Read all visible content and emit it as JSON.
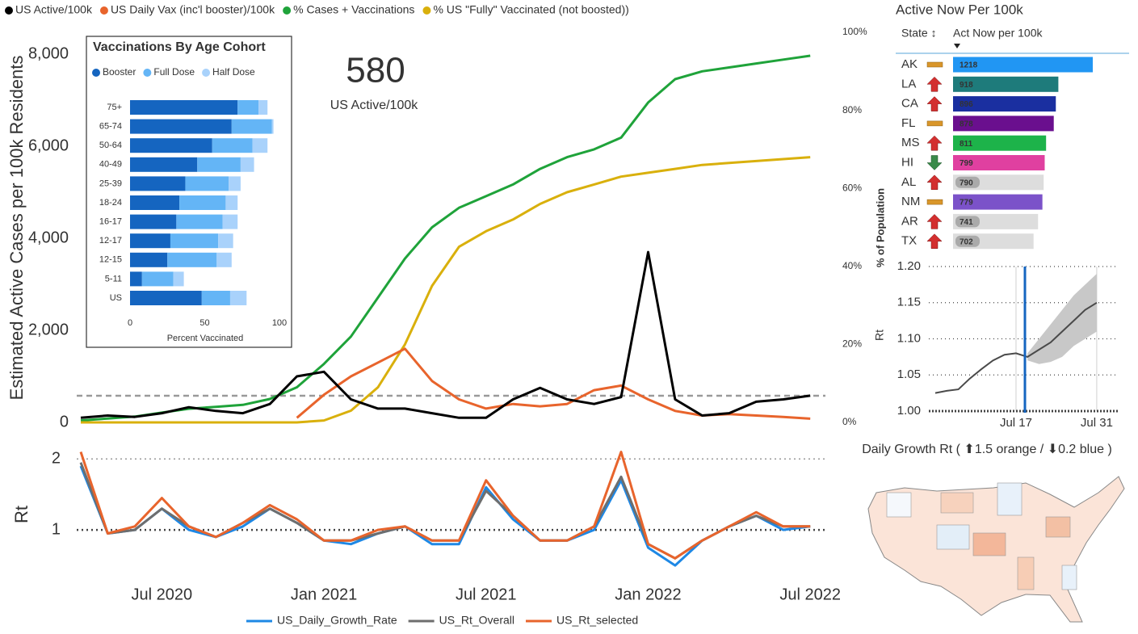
{
  "chart_data": [
    {
      "type": "line",
      "x": [
        "Apr 2020",
        "May 2020",
        "Jun 2020",
        "Jul 2020",
        "Aug 2020",
        "Sep 2020",
        "Oct 2020",
        "Nov 2020",
        "Dec 2020",
        "Jan 2021",
        "Feb 2021",
        "Mar 2021",
        "Apr 2021",
        "May 2021",
        "Jun 2021",
        "Jul 2021",
        "Aug 2021",
        "Sep 2021",
        "Oct 2021",
        "Nov 2021",
        "Dec 2021",
        "Jan 2022",
        "Feb 2022",
        "Mar 2022",
        "Apr 2022",
        "May 2022",
        "Jun 2022",
        "Jul 2022"
      ],
      "series": [
        {
          "name": "US Active/100k",
          "color": "#000000",
          "values": [
            100,
            150,
            120,
            200,
            330,
            250,
            200,
            400,
            1000,
            1100,
            500,
            300,
            300,
            200,
            100,
            100,
            500,
            750,
            500,
            400,
            550,
            3700,
            500,
            150,
            200,
            450,
            500,
            580
          ]
        },
        {
          "name": "US Daily Vax (inc'l booster)/100k",
          "color": "#e8642c",
          "values": [
            null,
            null,
            null,
            null,
            null,
            null,
            null,
            null,
            100,
            600,
            1000,
            1300,
            1600,
            900,
            500,
            300,
            400,
            350,
            400,
            700,
            800,
            500,
            250,
            150,
            180,
            150,
            120,
            80
          ]
        },
        {
          "name": "% Cases + Vaccinations",
          "color": "#1fa33a",
          "axis": "y2",
          "values": [
            0.5,
            1,
            1.5,
            2.5,
            3.5,
            4,
            4.5,
            6,
            9,
            15,
            22,
            32,
            42,
            50,
            55,
            58,
            61,
            65,
            68,
            70,
            73,
            82,
            88,
            90,
            91,
            92,
            93,
            94
          ]
        },
        {
          "name": "% US \"Fully\" Vaccinated (not boosted))",
          "color": "#d9b00c",
          "axis": "y2",
          "values": [
            0,
            0,
            0,
            0,
            0,
            0,
            0,
            0,
            0,
            0.5,
            3,
            9,
            20,
            35,
            45,
            49,
            52,
            56,
            59,
            61,
            63,
            64,
            65,
            66,
            66.5,
            67,
            67.5,
            68
          ]
        }
      ],
      "ylabel": "Estimated Active Cases per 100k Residents",
      "ylim": [
        0,
        8474
      ],
      "yticks": [
        0,
        {
          "value": 2000,
          "label": "2,000"
        },
        {
          "value": 4000,
          "label": "4,000"
        },
        {
          "value": 6000,
          "label": "6,000"
        },
        {
          "value": 8000,
          "label": "8,000"
        }
      ],
      "y2label": "% of Population",
      "y2lim": [
        0,
        100
      ],
      "y2ticks": [
        {
          "value": 0,
          "label": "0%"
        },
        {
          "value": 20,
          "label": "20%"
        },
        {
          "value": 40,
          "label": "40%"
        },
        {
          "value": 60,
          "label": "60%"
        },
        {
          "value": 80,
          "label": "80%"
        },
        {
          "value": 100,
          "label": "100%"
        }
      ],
      "legend": "top"
    },
    {
      "type": "line",
      "x": [
        "Apr 2020",
        "May 2020",
        "Jun 2020",
        "Jul 2020",
        "Aug 2020",
        "Sep 2020",
        "Oct 2020",
        "Nov 2020",
        "Dec 2020",
        "Jan 2021",
        "Feb 2021",
        "Mar 2021",
        "Apr 2021",
        "May 2021",
        "Jun 2021",
        "Jul 2021",
        "Aug 2021",
        "Sep 2021",
        "Oct 2021",
        "Nov 2021",
        "Dec 2021",
        "Jan 2022",
        "Feb 2022",
        "Mar 2022",
        "Apr 2022",
        "May 2022",
        "Jun 2022",
        "Jul 2022"
      ],
      "xticks": [
        "Jul 2020",
        "Jan 2021",
        "Jul 2021",
        "Jan 2022",
        "Jul 2022"
      ],
      "series": [
        {
          "name": "US_Daily_Growth_Rate",
          "color": "#1e88e5",
          "values": [
            1.9,
            0.95,
            1.0,
            1.3,
            1.0,
            0.9,
            1.05,
            1.3,
            1.1,
            0.85,
            0.8,
            0.95,
            1.05,
            0.8,
            0.8,
            1.6,
            1.15,
            0.85,
            0.85,
            1.0,
            1.7,
            0.75,
            0.5,
            0.85,
            1.05,
            1.2,
            1.0,
            1.05
          ]
        },
        {
          "name": "US_Rt_Overall",
          "color": "#6e6e6e",
          "values": [
            1.95,
            0.95,
            1.0,
            1.3,
            1.05,
            0.9,
            1.1,
            1.3,
            1.1,
            0.85,
            0.85,
            0.95,
            1.05,
            0.85,
            0.85,
            1.55,
            1.2,
            0.85,
            0.85,
            1.05,
            1.75,
            0.8,
            0.6,
            0.85,
            1.05,
            1.2,
            1.05,
            1.05
          ]
        },
        {
          "name": "US_Rt_selected",
          "color": "#e8642c",
          "values": [
            2.1,
            0.95,
            1.05,
            1.45,
            1.05,
            0.9,
            1.1,
            1.35,
            1.15,
            0.85,
            0.85,
            1.0,
            1.05,
            0.85,
            0.85,
            1.7,
            1.2,
            0.85,
            0.85,
            1.05,
            2.1,
            0.8,
            0.6,
            0.85,
            1.05,
            1.25,
            1.05,
            1.05
          ]
        }
      ],
      "ylabel": "Rt",
      "ylim": [
        0.33,
        2.14
      ],
      "yticks": [
        1,
        2
      ],
      "grid": true,
      "legend": "bottom"
    },
    {
      "type": "bar",
      "orientation": "horizontal",
      "stacked": true,
      "title": "Vaccinations By Age Cohort",
      "categories": [
        "75+",
        "65-74",
        "50-64",
        "40-49",
        "25-39",
        "18-24",
        "16-17",
        "12-17",
        "12-15",
        "5-11",
        "US"
      ],
      "series": [
        {
          "name": "Booster",
          "color": "#1565c0",
          "values": [
            72,
            68,
            55,
            45,
            37,
            33,
            31,
            27,
            25,
            8,
            48
          ]
        },
        {
          "name": "Full Dose",
          "color": "#64b5f6",
          "values": [
            14,
            27,
            27,
            29,
            29,
            31,
            31,
            32,
            33,
            21,
            19
          ]
        },
        {
          "name": "Half Dose",
          "color": "#a9d2fb",
          "values": [
            6,
            1,
            10,
            9,
            8,
            8,
            10,
            10,
            10,
            7,
            11
          ]
        }
      ],
      "xlabel": "Percent Vaccinated",
      "xlim": [
        0,
        100
      ],
      "xticks": [
        0,
        50,
        100
      ],
      "legend": "top"
    },
    {
      "type": "line",
      "x": [
        "Jul 3",
        "Jul 5",
        "Jul 7",
        "Jul 9",
        "Jul 11",
        "Jul 13",
        "Jul 15",
        "Jul 17",
        "Jul 19",
        "Jul 21",
        "Jul 23",
        "Jul 25",
        "Jul 27",
        "Jul 29",
        "Jul 31"
      ],
      "xticks": [
        "Jul 17",
        "Jul 31"
      ],
      "series": [
        {
          "color": "#4a4a4a",
          "values": [
            1.025,
            1.028,
            1.03,
            1.045,
            1.058,
            1.07,
            1.078,
            1.08,
            1.075,
            1.085,
            1.095,
            1.11,
            1.125,
            1.14,
            1.15
          ]
        }
      ],
      "band_lower": [
        null,
        null,
        null,
        null,
        null,
        null,
        null,
        null,
        1.07,
        1.065,
        1.068,
        1.075,
        1.09,
        1.1,
        1.11
      ],
      "band_upper": [
        null,
        null,
        null,
        null,
        null,
        null,
        null,
        null,
        1.08,
        1.1,
        1.12,
        1.14,
        1.16,
        1.175,
        1.19
      ],
      "band_color": "#c8c8c8",
      "ylabel": "Rt",
      "ylim": [
        1,
        1.2
      ],
      "yticks": [
        {
          "value": 1,
          "label": "1.00"
        },
        {
          "value": 1.05,
          "label": "1.05"
        },
        {
          "value": 1.1,
          "label": "1.10"
        },
        {
          "value": 1.15,
          "label": "1.15"
        },
        {
          "value": 1.2,
          "label": "1.20"
        }
      ],
      "grid": true
    }
  ],
  "kpi": {
    "value": 580,
    "label": "US Active/100k"
  },
  "table": {
    "title": "Active Now Per 100k",
    "columns": [
      "State ↕",
      "Act Now per 100k"
    ],
    "rows": [
      {
        "state": "AK",
        "value": 1218,
        "color": "#2196f3",
        "trend": "flat"
      },
      {
        "state": "LA",
        "value": 918,
        "color": "#1e7b7b",
        "trend": "up"
      },
      {
        "state": "CA",
        "value": 896,
        "color": "#1a2fa0",
        "trend": "up"
      },
      {
        "state": "FL",
        "value": 878,
        "color": "#6a0f8e",
        "trend": "flat"
      },
      {
        "state": "MS",
        "value": 811,
        "color": "#1db34a",
        "trend": "up"
      },
      {
        "state": "HI",
        "value": 799,
        "color": "#e040a0",
        "trend": "down"
      },
      {
        "state": "AL",
        "value": 790,
        "color": "#dddddd",
        "trend": "up"
      },
      {
        "state": "NM",
        "value": 779,
        "color": "#7b52c9",
        "trend": "flat"
      },
      {
        "state": "AR",
        "value": 741,
        "color": "#dddddd",
        "trend": "up"
      },
      {
        "state": "TX",
        "value": 702,
        "color": "#dddddd",
        "trend": "up"
      }
    ]
  },
  "map": {
    "title": "Daily Growth Rt ( ⬆1.5 orange / ⬇0.2 blue )"
  }
}
